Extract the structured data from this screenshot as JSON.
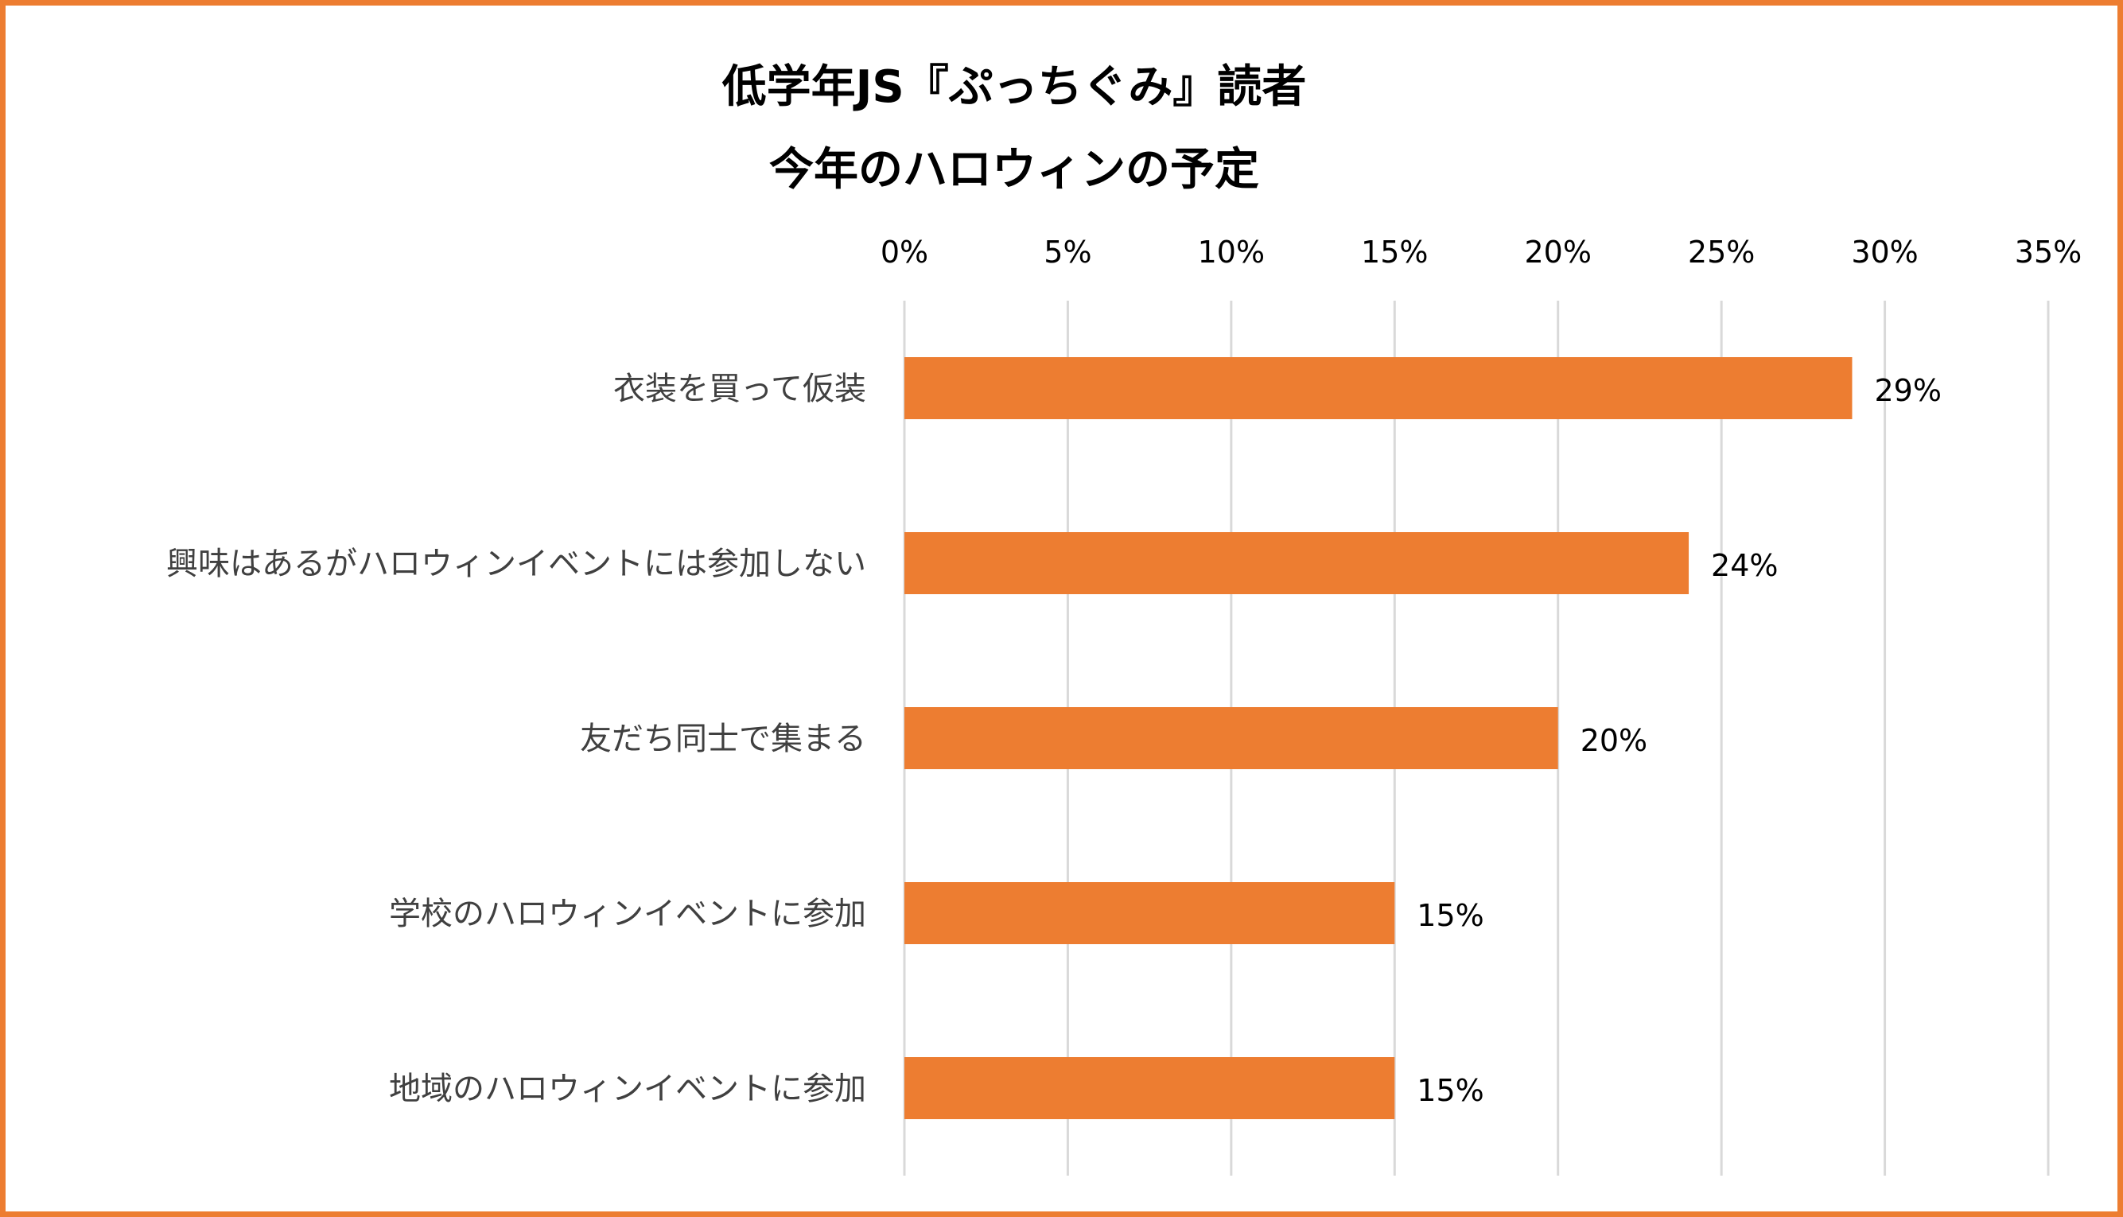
{
  "chart_data": {
    "type": "bar",
    "orientation": "horizontal",
    "title_lines": [
      "低学年JS『ぷっちぐみ』読者",
      "今年のハロウィンの予定"
    ],
    "categories": [
      "衣装を買って仮装",
      "興味はあるがハロウィンイベントには参加しない",
      "友だち同士で集まる",
      "学校のハロウィンイベントに参加",
      "地域のハロウィンイベントに参加"
    ],
    "values": [
      29,
      24,
      20,
      15,
      15
    ],
    "value_labels": [
      "29%",
      "24%",
      "20%",
      "15%",
      "15%"
    ],
    "xlim": [
      0,
      35
    ],
    "ticks": [
      0,
      5,
      10,
      15,
      20,
      25,
      30,
      35
    ],
    "tick_labels": [
      "0%",
      "5%",
      "10%",
      "15%",
      "20%",
      "25%",
      "30%",
      "35%"
    ],
    "axis_position": "top",
    "grid": true,
    "xlabel": "",
    "ylabel": "",
    "colors": {
      "bar": "#ED7D31",
      "frame": "#ED7D31",
      "grid": "#D9D9D9"
    }
  }
}
